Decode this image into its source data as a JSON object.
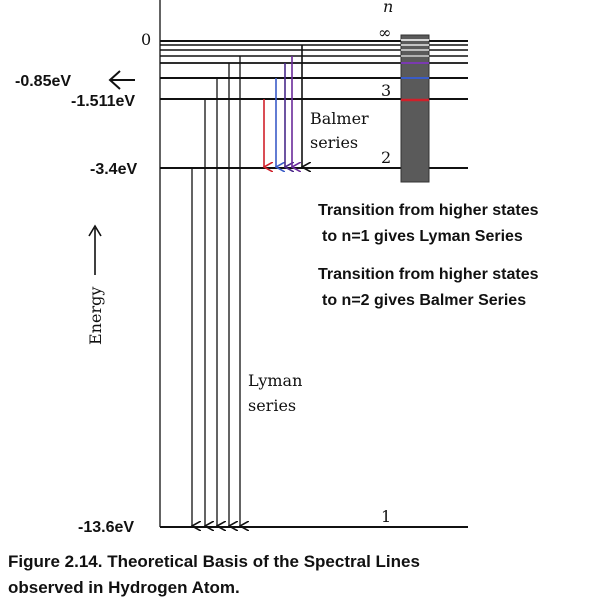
{
  "diagram": {
    "n_header": "n",
    "n_infinity": "∞",
    "n3": "3",
    "n2": "2",
    "n1": "1",
    "zero_label": "0",
    "energy_labels": {
      "e085": "-0.85eV",
      "e1511": "-1.511eV",
      "e34": "-3.4eV",
      "e136": "-13.6eV"
    },
    "energy_axis_label": "Energy",
    "balmer_label": [
      "Balmer",
      "series"
    ],
    "lyman_label": [
      "Lyman",
      "series"
    ],
    "spectrum_colors": {
      "red": "#d0202a",
      "blue": "#3a5cc8",
      "purple": "#6a2a9a",
      "white": "#ffffff"
    },
    "balmer_arrow_colors": [
      "#d0202a",
      "#3a5cc8",
      "#4a2a8a",
      "#6a2a9a",
      "#111111"
    ]
  },
  "notes": {
    "lyman_note": [
      "Transition from higher states",
      "to n=1 gives Lyman Series"
    ],
    "balmer_note": [
      "Transition from higher states",
      "to n=2 gives Balmer Series"
    ]
  },
  "caption": {
    "line1": "Figure 2.14. Theoretical Basis of the Spectral Lines",
    "line2": "observed in Hydrogen Atom."
  }
}
